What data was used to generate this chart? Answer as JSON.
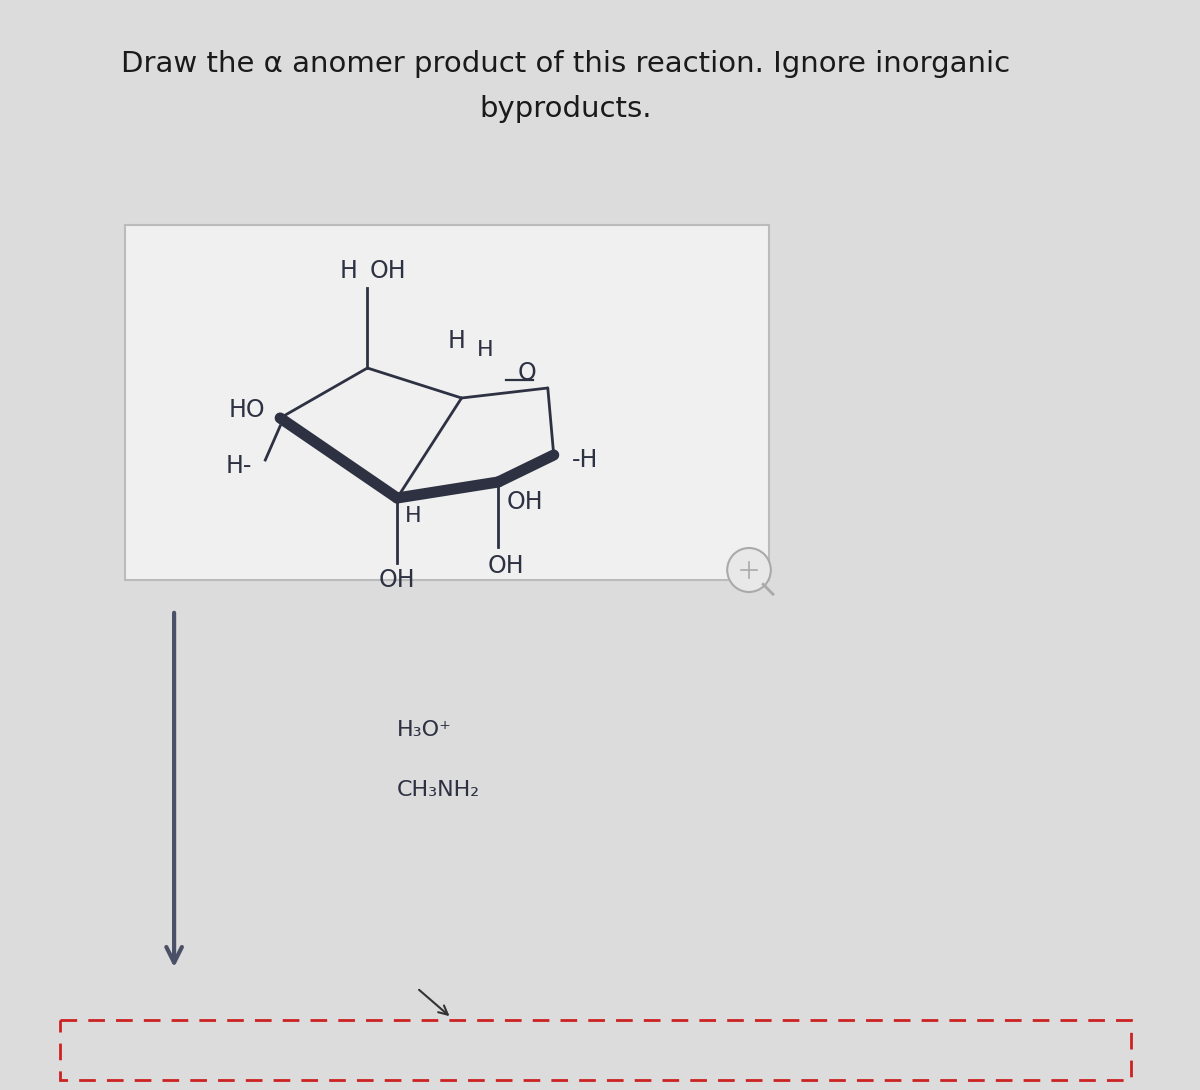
{
  "title_line1": "Draw the α anomer product of this reaction. Ignore inorganic",
  "title_line2": "byproducts.",
  "title_fontsize": 21,
  "title_color": "#1a1a1a",
  "bg_color": "#dcdcdc",
  "box_bg": "#f0f0f0",
  "box_edge": "#bbbbbb",
  "text_color": "#2d3142",
  "molecule_color": "#2d3142",
  "reagent1": "H₃O⁺",
  "reagent2": "CH₃NH₂",
  "reagent_fontsize": 16,
  "arrow_color": "#4a5068",
  "dashed_box_color": "#cc2222"
}
